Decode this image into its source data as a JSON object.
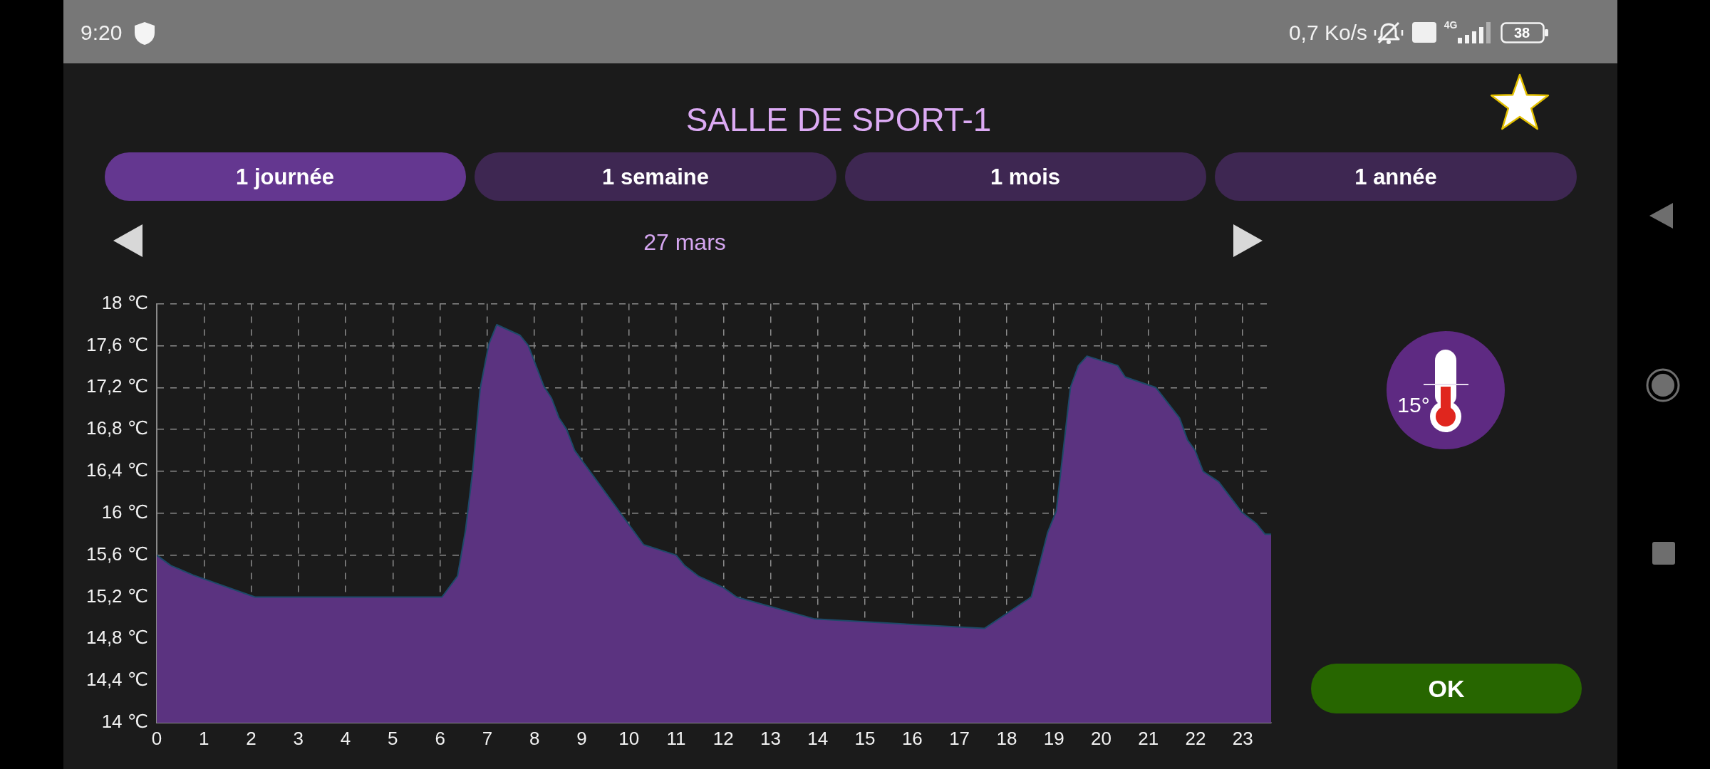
{
  "chart_data": {
    "type": "area",
    "title": "SALLE DE SPORT-1",
    "subtitle": "27 mars",
    "x": [
      0,
      0.3,
      0.77,
      2.08,
      6.04,
      6.37,
      6.54,
      6.69,
      6.85,
      7.03,
      7.2,
      7.69,
      7.87,
      8.2,
      8.36,
      8.52,
      8.68,
      8.85,
      10.31,
      11.0,
      11.18,
      11.47,
      12.0,
      12.28,
      12.99,
      13.94,
      17.53,
      18.52,
      18.87,
      19.05,
      19.35,
      19.52,
      19.7,
      20.35,
      20.51,
      21.16,
      21.66,
      21.83,
      21.99,
      22.16,
      22.49,
      22.98,
      23.29,
      23.47,
      23.6
    ],
    "series": [
      {
        "color": "#5b3380",
        "values": [
          15.6,
          15.5,
          15.41,
          15.2,
          15.2,
          15.4,
          15.84,
          16.4,
          17.19,
          17.61,
          17.8,
          17.7,
          17.6,
          17.21,
          17.1,
          16.91,
          16.8,
          16.6,
          15.7,
          15.6,
          15.5,
          15.4,
          15.29,
          15.2,
          15.11,
          14.99,
          14.9,
          15.2,
          15.82,
          16.02,
          17.2,
          17.41,
          17.5,
          17.41,
          17.3,
          17.2,
          16.91,
          16.7,
          16.6,
          16.4,
          16.3,
          16.01,
          15.9,
          15.8,
          15.8
        ]
      }
    ],
    "xlim": [
      0,
      23.6
    ],
    "xticks": [
      0,
      1,
      2,
      3,
      4,
      5,
      6,
      7,
      8,
      9,
      10,
      11,
      12,
      13,
      14,
      15,
      16,
      17,
      18,
      19,
      20,
      21,
      22,
      23
    ],
    "ylim": [
      14,
      18
    ],
    "yticks": [
      {
        "value": 14,
        "label": "14 ℃"
      },
      {
        "value": 14.4,
        "label": "14,4 ℃"
      },
      {
        "value": 14.8,
        "label": "14,8 ℃"
      },
      {
        "value": 15.2,
        "label": "15,2 ℃"
      },
      {
        "value": 15.6,
        "label": "15,6 ℃"
      },
      {
        "value": 16,
        "label": "16 ℃"
      },
      {
        "value": 16.4,
        "label": "16,4 ℃"
      },
      {
        "value": 16.8,
        "label": "16,8 ℃"
      },
      {
        "value": 17.2,
        "label": "17,2 ℃"
      },
      {
        "value": 17.6,
        "label": "17,6 ℃"
      },
      {
        "value": 18,
        "label": "18 ℃"
      }
    ],
    "grid": true,
    "annotations": [
      "9:20",
      "0,7 Ko/s",
      "4G",
      "38",
      "1 journée",
      "1 semaine",
      "1 mois",
      "1 année",
      "15°",
      "OK"
    ]
  }
}
